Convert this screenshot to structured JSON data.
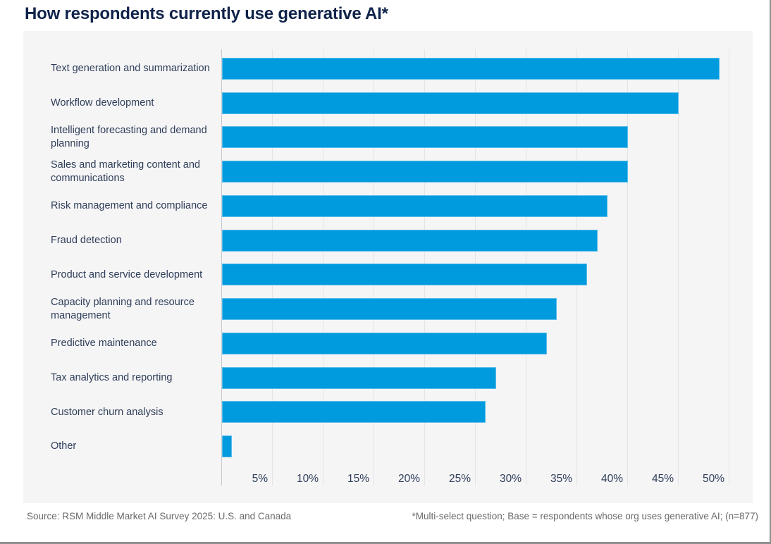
{
  "title": "How respondents currently use generative AI*",
  "footer": {
    "source": "Source: RSM Middle Market AI Survey 2025: U.S. and Canada",
    "footnote": "*Multi-select question; Base = respondents whose org uses generative AI; (n=877)"
  },
  "colors": {
    "bar": "#009ade",
    "title": "#10234a",
    "label": "#2f3e59",
    "panel_bg": "#f5f5f6",
    "gridline": "#e4e4e7",
    "axis_line": "#c6c8ce",
    "footer_text": "#6a6a6a",
    "frame_border": "#8f8f8f"
  },
  "chart_data": {
    "type": "bar",
    "orientation": "horizontal",
    "title": "How respondents currently use generative AI*",
    "categories": [
      "Text generation and summarization",
      "Workflow development",
      "Intelligent forecasting and demand planning",
      "Sales and marketing content and communications",
      "Risk management and compliance",
      "Fraud detection",
      "Product and service development",
      "Capacity planning and resource management",
      "Predictive maintenance",
      "Tax analytics and reporting",
      "Customer churn analysis",
      "Other"
    ],
    "values": [
      49,
      45,
      40,
      40,
      38,
      37,
      36,
      33,
      32,
      27,
      26,
      1
    ],
    "unit": "%",
    "xlim": [
      0,
      50
    ],
    "x_tick_values": [
      5,
      10,
      15,
      20,
      25,
      30,
      35,
      40,
      45,
      50
    ],
    "x_tick_labels": [
      "5%",
      "10%",
      "15%",
      "20%",
      "25%",
      "30%",
      "35%",
      "40%",
      "45%",
      "50%"
    ],
    "grid": "vertical",
    "legend": "none",
    "bar_color": "#009ade",
    "background": "#f5f5f6"
  }
}
